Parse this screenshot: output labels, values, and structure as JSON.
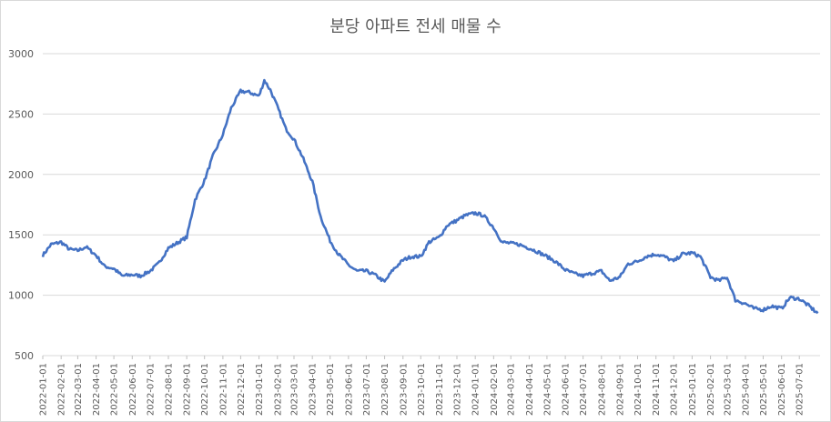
{
  "chart_data": {
    "type": "line",
    "title": "분당 아파트 전세 매물 수",
    "xlabel": "",
    "ylabel": "",
    "ylim": [
      500,
      3000
    ],
    "yticks": [
      500,
      1000,
      1500,
      2000,
      2500,
      3000
    ],
    "grid": true,
    "legend": "none",
    "line_color": "#4472c4",
    "x_tick_labels": [
      "2022-01-01",
      "2022-02-01",
      "2022-03-01",
      "2022-04-01",
      "2022-05-01",
      "2022-06-01",
      "2022-07-01",
      "2022-08-01",
      "2022-09-01",
      "2022-10-01",
      "2022-11-01",
      "2022-12-01",
      "2023-01-01",
      "2023-02-01",
      "2023-03-01",
      "2023-04-01",
      "2023-05-01",
      "2023-06-01",
      "2023-07-01",
      "2023-08-01",
      "2023-09-01",
      "2023-10-01",
      "2023-11-01",
      "2023-12-01",
      "2024-01-01",
      "2024-02-01",
      "2024-03-01",
      "2024-04-01",
      "2024-05-01",
      "2024-06-01",
      "2024-07-01",
      "2024-08-01",
      "2024-09-01",
      "2024-10-01",
      "2024-11-01",
      "2024-12-01",
      "2025-01-01",
      "2025-02-01",
      "2025-03-01",
      "2025-04-01",
      "2025-05-01",
      "2025-06-01",
      "2025-07-01"
    ],
    "series": [
      {
        "points": [
          [
            "2022-01-01",
            1330
          ],
          [
            "2022-01-15",
            1420
          ],
          [
            "2022-02-01",
            1440
          ],
          [
            "2022-02-15",
            1380
          ],
          [
            "2022-03-01",
            1370
          ],
          [
            "2022-03-15",
            1400
          ],
          [
            "2022-04-01",
            1330
          ],
          [
            "2022-04-15",
            1240
          ],
          [
            "2022-05-01",
            1220
          ],
          [
            "2022-05-15",
            1160
          ],
          [
            "2022-06-01",
            1170
          ],
          [
            "2022-06-15",
            1160
          ],
          [
            "2022-07-01",
            1200
          ],
          [
            "2022-07-15",
            1260
          ],
          [
            "2022-08-01",
            1390
          ],
          [
            "2022-08-15",
            1430
          ],
          [
            "2022-09-01",
            1480
          ],
          [
            "2022-09-15",
            1790
          ],
          [
            "2022-10-01",
            1950
          ],
          [
            "2022-10-15",
            2150
          ],
          [
            "2022-11-01",
            2330
          ],
          [
            "2022-11-15",
            2550
          ],
          [
            "2022-12-01",
            2690
          ],
          [
            "2022-12-15",
            2680
          ],
          [
            "2023-01-01",
            2650
          ],
          [
            "2023-01-10",
            2780
          ],
          [
            "2023-01-20",
            2700
          ],
          [
            "2023-02-01",
            2560
          ],
          [
            "2023-02-15",
            2380
          ],
          [
            "2023-03-01",
            2290
          ],
          [
            "2023-03-15",
            2150
          ],
          [
            "2023-04-01",
            1940
          ],
          [
            "2023-04-15",
            1650
          ],
          [
            "2023-05-01",
            1450
          ],
          [
            "2023-05-15",
            1340
          ],
          [
            "2023-06-01",
            1250
          ],
          [
            "2023-06-15",
            1200
          ],
          [
            "2023-07-01",
            1200
          ],
          [
            "2023-07-15",
            1170
          ],
          [
            "2023-08-01",
            1110
          ],
          [
            "2023-08-15",
            1210
          ],
          [
            "2023-09-01",
            1290
          ],
          [
            "2023-09-15",
            1320
          ],
          [
            "2023-10-01",
            1320
          ],
          [
            "2023-10-15",
            1440
          ],
          [
            "2023-11-01",
            1480
          ],
          [
            "2023-11-15",
            1580
          ],
          [
            "2023-12-01",
            1620
          ],
          [
            "2023-12-15",
            1660
          ],
          [
            "2024-01-01",
            1680
          ],
          [
            "2024-01-15",
            1660
          ],
          [
            "2024-02-01",
            1560
          ],
          [
            "2024-02-15",
            1440
          ],
          [
            "2024-03-01",
            1430
          ],
          [
            "2024-03-15",
            1420
          ],
          [
            "2024-04-01",
            1390
          ],
          [
            "2024-04-15",
            1360
          ],
          [
            "2024-05-01",
            1320
          ],
          [
            "2024-05-15",
            1280
          ],
          [
            "2024-06-01",
            1210
          ],
          [
            "2024-06-15",
            1180
          ],
          [
            "2024-07-01",
            1160
          ],
          [
            "2024-07-15",
            1180
          ],
          [
            "2024-08-01",
            1200
          ],
          [
            "2024-08-15",
            1120
          ],
          [
            "2024-09-01",
            1150
          ],
          [
            "2024-09-15",
            1260
          ],
          [
            "2024-10-01",
            1280
          ],
          [
            "2024-10-15",
            1320
          ],
          [
            "2024-11-01",
            1340
          ],
          [
            "2024-11-15",
            1320
          ],
          [
            "2024-12-01",
            1280
          ],
          [
            "2024-12-15",
            1340
          ],
          [
            "2025-01-01",
            1350
          ],
          [
            "2025-01-15",
            1320
          ],
          [
            "2025-02-01",
            1150
          ],
          [
            "2025-02-15",
            1120
          ],
          [
            "2025-03-01",
            1150
          ],
          [
            "2025-03-15",
            960
          ],
          [
            "2025-04-01",
            930
          ],
          [
            "2025-04-15",
            890
          ],
          [
            "2025-05-01",
            880
          ],
          [
            "2025-05-15",
            910
          ],
          [
            "2025-06-01",
            890
          ],
          [
            "2025-06-15",
            980
          ],
          [
            "2025-07-01",
            970
          ],
          [
            "2025-07-15",
            920
          ],
          [
            "2025-08-01",
            850
          ]
        ]
      }
    ]
  }
}
